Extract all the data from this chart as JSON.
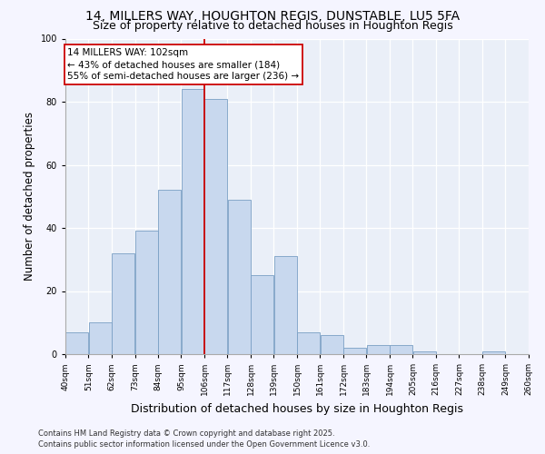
{
  "title1": "14, MILLERS WAY, HOUGHTON REGIS, DUNSTABLE, LU5 5FA",
  "title2": "Size of property relative to detached houses in Houghton Regis",
  "xlabel": "Distribution of detached houses by size in Houghton Regis",
  "ylabel": "Number of detached properties",
  "bins": [
    40,
    51,
    62,
    73,
    84,
    95,
    106,
    117,
    128,
    139,
    150,
    161,
    172,
    183,
    194,
    205,
    216,
    227,
    238,
    249,
    260
  ],
  "bin_labels": [
    "40sqm",
    "51sqm",
    "62sqm",
    "73sqm",
    "84sqm",
    "95sqm",
    "106sqm",
    "117sqm",
    "128sqm",
    "139sqm",
    "150sqm",
    "161sqm",
    "172sqm",
    "183sqm",
    "194sqm",
    "205sqm",
    "216sqm",
    "227sqm",
    "238sqm",
    "249sqm",
    "260sqm"
  ],
  "counts": [
    7,
    10,
    32,
    39,
    52,
    84,
    81,
    49,
    25,
    31,
    7,
    6,
    2,
    3,
    3,
    1,
    0,
    0,
    1,
    0
  ],
  "bar_color": "#c8d8ee",
  "bar_edge_color": "#7a9fc4",
  "vline_x": 106,
  "vline_color": "#cc0000",
  "annotation_title": "14 MILLERS WAY: 102sqm",
  "annotation_line1": "← 43% of detached houses are smaller (184)",
  "annotation_line2": "55% of semi-detached houses are larger (236) →",
  "annotation_box_color": "#cc0000",
  "ylim": [
    0,
    100
  ],
  "yticks": [
    0,
    20,
    40,
    60,
    80,
    100
  ],
  "footnote1": "Contains HM Land Registry data © Crown copyright and database right 2025.",
  "footnote2": "Contains public sector information licensed under the Open Government Licence v3.0.",
  "plot_bg_color": "#eaeff8",
  "fig_bg_color": "#f5f5ff",
  "title1_fontsize": 10,
  "title2_fontsize": 9,
  "xlabel_fontsize": 9,
  "ylabel_fontsize": 8.5,
  "annot_fontsize": 7.5,
  "tick_fontsize": 6.5,
  "footnote_fontsize": 6
}
